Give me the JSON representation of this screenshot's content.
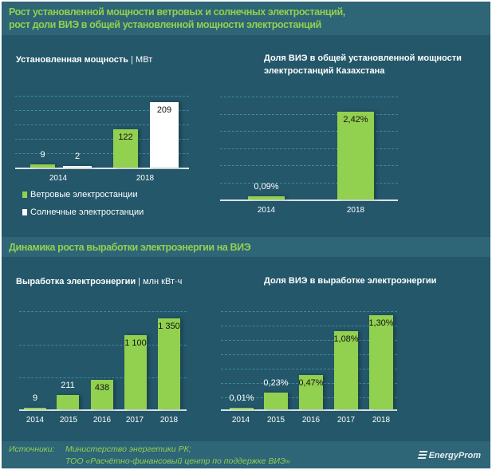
{
  "section1": {
    "title_line1": "Рост установленной мощности ветровых и солнечных электростанций,",
    "title_line2": "рост доли ВИЭ в общей установленной мощности электростанций"
  },
  "section2": {
    "title": "Динамика роста выработки электроэнергии на ВИЭ"
  },
  "footer": {
    "sources_label": "Источники:",
    "source1": "Министерство энергетики РК;",
    "source2": "ТОО «Расчётно-финансовый центр по поддержке ВИЭ»",
    "logo": "EnergyProm"
  },
  "colors": {
    "wind": "#92d050",
    "solar": "#ffffff",
    "bg": "#235769"
  },
  "chart_data": [
    {
      "type": "bar",
      "title": "Установленная мощность",
      "unit": "| МВт",
      "categories": [
        "2014",
        "2018"
      ],
      "series": [
        {
          "name": "Ветровые электростанции",
          "values": [
            9,
            122
          ],
          "labels": [
            "9",
            "122"
          ]
        },
        {
          "name": "Солнечные электростанции",
          "values": [
            2,
            209
          ],
          "labels": [
            "2",
            "209"
          ]
        }
      ],
      "ylim": [
        0,
        250
      ],
      "legend": "bottom-left",
      "grid": true
    },
    {
      "type": "bar",
      "title_line1": "Доля ВИЭ в общей установленной мощности",
      "title_line2": "электростанций Казахстана",
      "categories": [
        "2014",
        "2018"
      ],
      "values": [
        0.09,
        2.42
      ],
      "labels": [
        "0,09%",
        "2,42%"
      ],
      "ylim": [
        0,
        3.0
      ],
      "grid": true
    },
    {
      "type": "bar",
      "title": "Выработка электроэнергии",
      "unit": "| млн кВт·ч",
      "categories": [
        "2014",
        "2015",
        "2016",
        "2017",
        "2018"
      ],
      "values": [
        9,
        211,
        438,
        1100,
        1350
      ],
      "labels": [
        "9",
        "211",
        "438",
        "1 100",
        "1 350"
      ],
      "ylim": [
        0,
        1500
      ],
      "grid": true
    },
    {
      "type": "bar",
      "title": "Доля ВИЭ в выработке электроэнергии",
      "categories": [
        "2014",
        "2015",
        "2016",
        "2017",
        "2018"
      ],
      "values": [
        0.01,
        0.23,
        0.47,
        1.08,
        1.3
      ],
      "labels": [
        "0,01%",
        "0,23%",
        "0,47%",
        "1,08%",
        "1,30%"
      ],
      "ylim": [
        0,
        1.4
      ],
      "grid": true
    }
  ]
}
